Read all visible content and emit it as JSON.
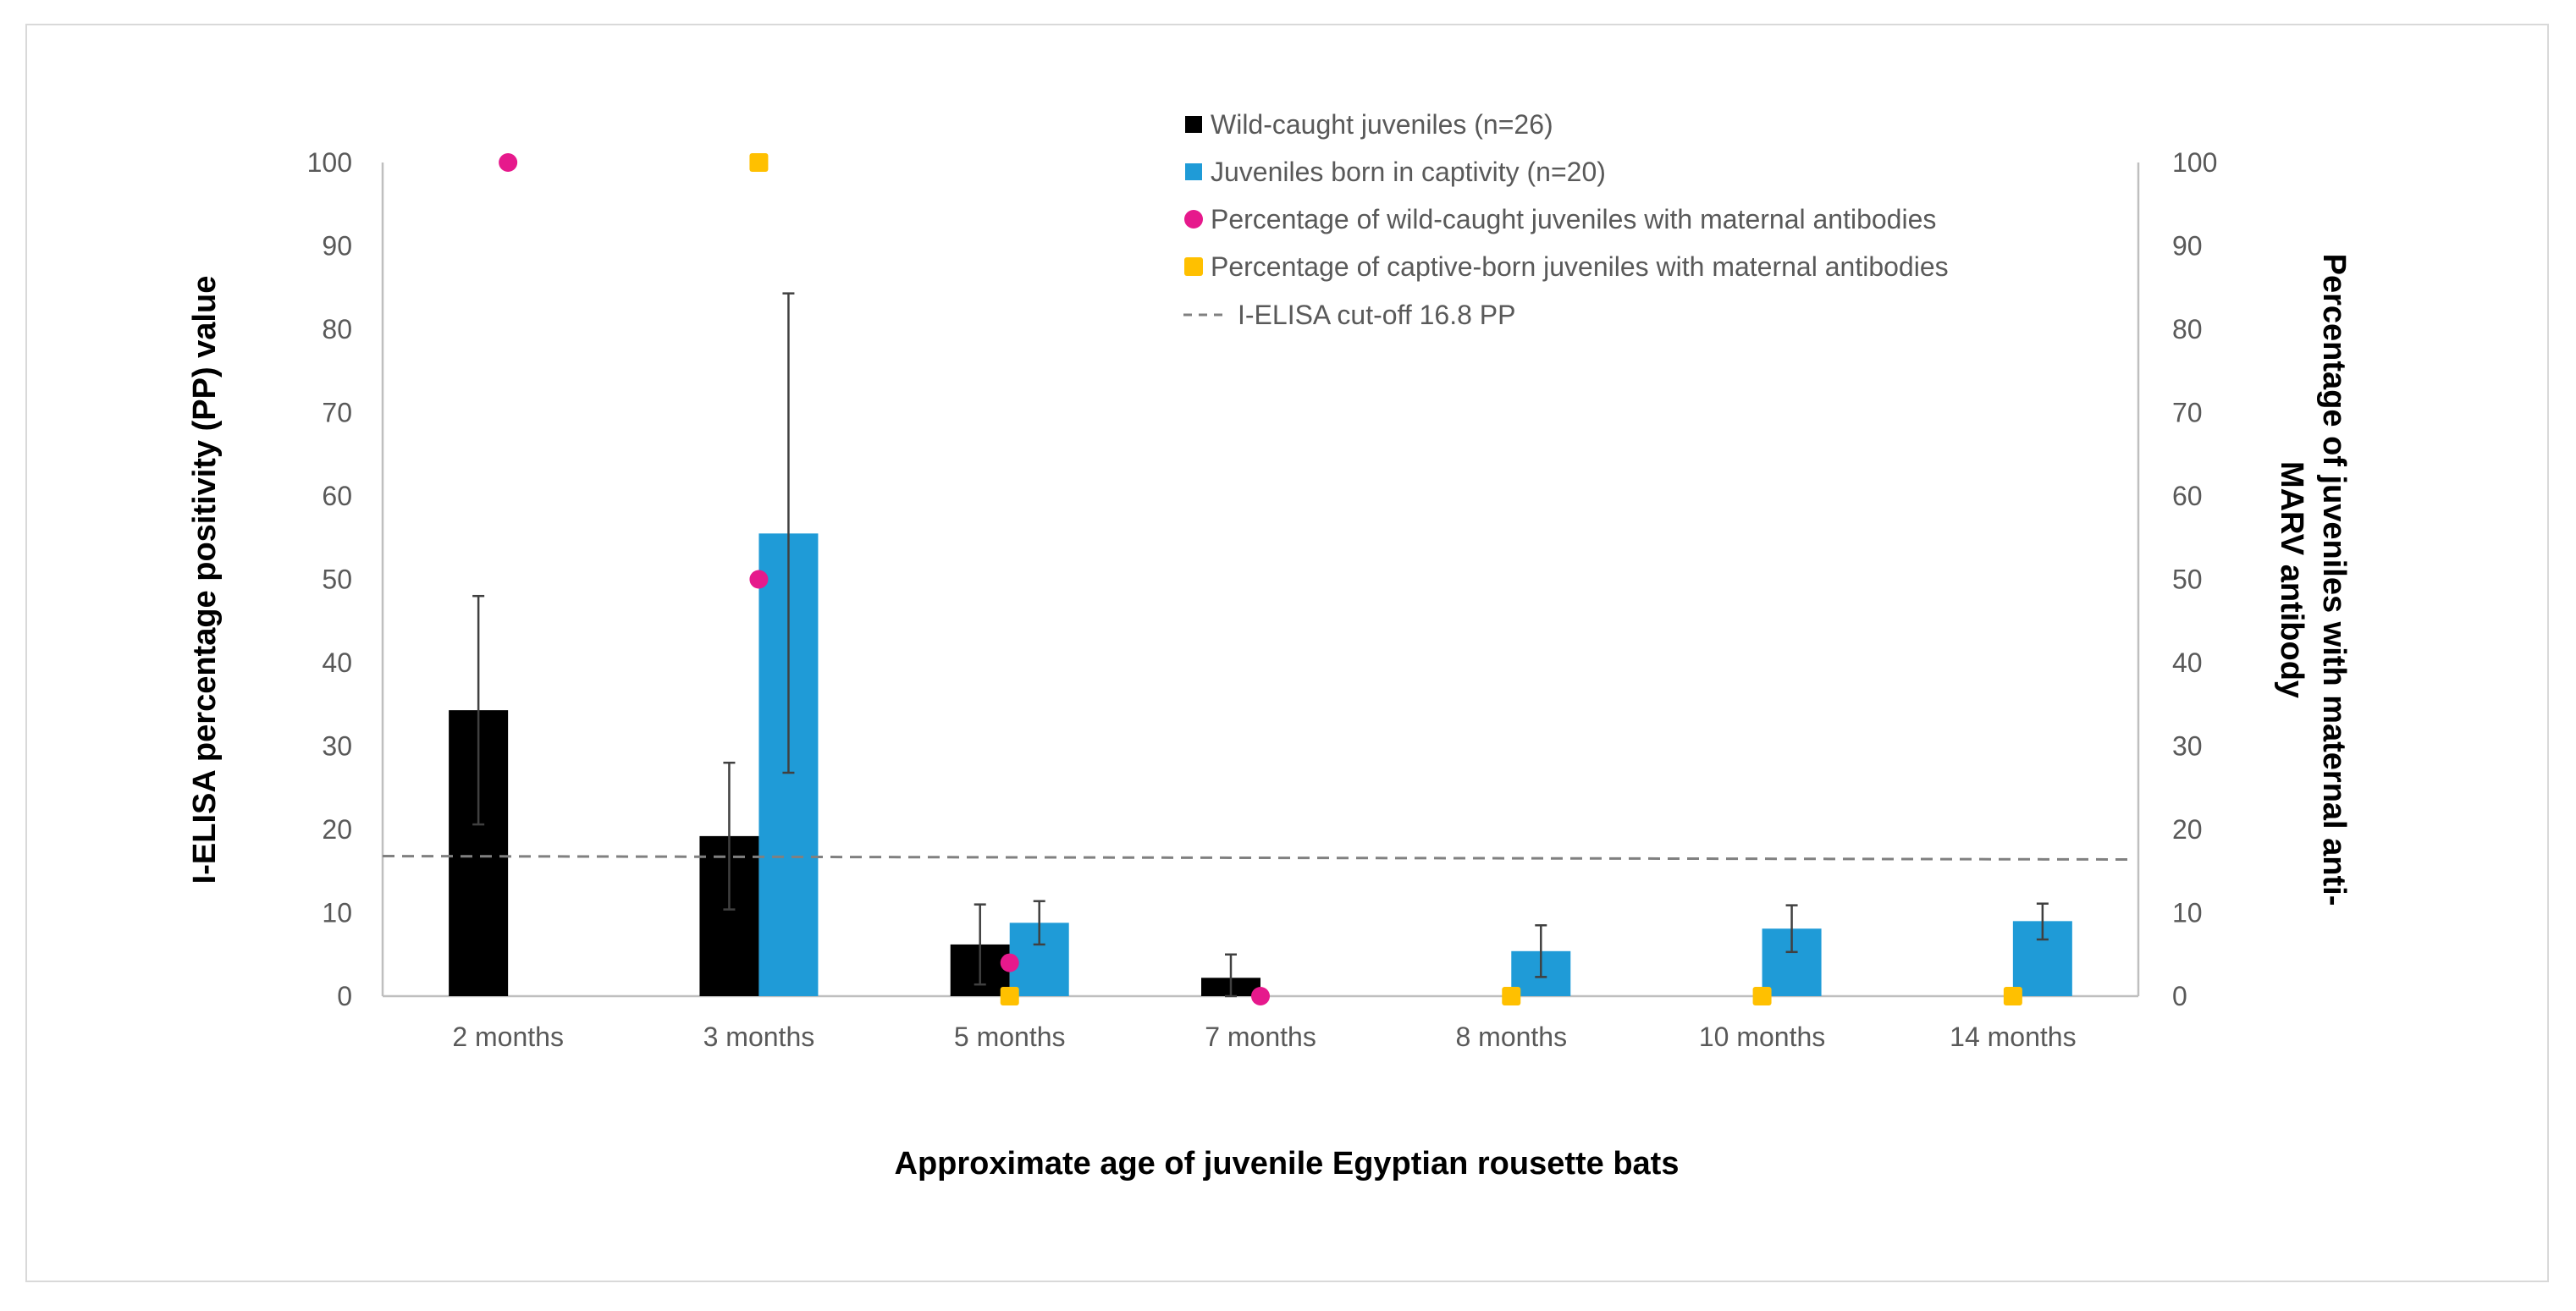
{
  "chart_data": {
    "type": "bar",
    "title": "",
    "categories": [
      "2 months",
      "3 months",
      "5 months",
      "7 months",
      "8 months",
      "10 months",
      "14 months"
    ],
    "xlabel": "Approximate age of juvenile Egyptian rousette bats",
    "ylabel": "I-ELISA percentage positivity (PP) value",
    "y2label_line1": "Percentage of juveniles with maternal anti-",
    "y2label_line2": "MARV antibody",
    "ylim": [
      0,
      100
    ],
    "y2lim": [
      0,
      100
    ],
    "yticks": [
      "0",
      "10",
      "20",
      "30",
      "40",
      "50",
      "60",
      "70",
      "80",
      "90",
      "100"
    ],
    "y2ticks": [
      "0",
      "10",
      "20",
      "30",
      "40",
      "50",
      "60",
      "70",
      "80",
      "90",
      "100"
    ],
    "series": [
      {
        "name": "Wild-caught juveniles (n=26)",
        "kind": "bar",
        "axis": "left",
        "color": "#000000",
        "values": [
          34.3,
          19.2,
          6.2,
          2.2,
          null,
          null,
          null
        ],
        "err_low": [
          20.6,
          10.4,
          1.4,
          0.0,
          null,
          null,
          null
        ],
        "err_high": [
          48.0,
          28.0,
          11.0,
          5.0,
          null,
          null,
          null
        ]
      },
      {
        "name": "Juveniles born in captivity (n=20)",
        "kind": "bar",
        "axis": "left",
        "color": "#1f9bd7",
        "values": [
          null,
          55.5,
          8.8,
          null,
          5.4,
          8.1,
          9.0
        ],
        "err_low": [
          null,
          26.8,
          6.2,
          null,
          2.3,
          5.3,
          6.8
        ],
        "err_high": [
          null,
          84.3,
          11.4,
          null,
          8.5,
          10.9,
          11.1
        ]
      },
      {
        "name": "Percentage of wild-caught juveniles with maternal antibodies",
        "kind": "point",
        "marker": "circle",
        "axis": "right",
        "color": "#e6198c",
        "values": [
          100,
          50,
          4,
          0,
          null,
          null,
          null
        ]
      },
      {
        "name": "Percentage of captive-born juveniles with maternal antibodies",
        "kind": "point",
        "marker": "square",
        "axis": "right",
        "color": "#ffc000",
        "values": [
          null,
          100,
          0,
          null,
          0,
          0,
          0
        ]
      }
    ],
    "cutoff": {
      "label": "I-ELISA cut-off  16.8 PP",
      "value": 16.8,
      "color": "#808080",
      "style": "dashed"
    },
    "legend_position": "top-right",
    "grid": false
  }
}
